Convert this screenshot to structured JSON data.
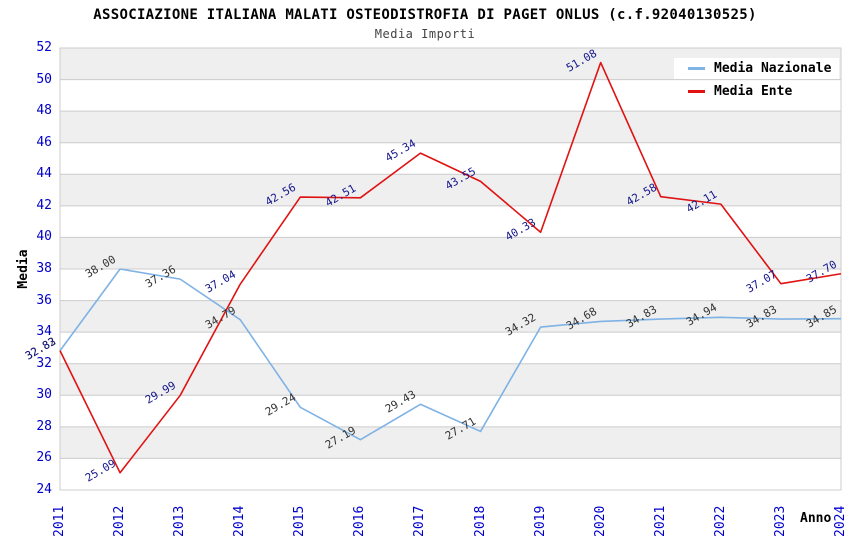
{
  "header": {
    "title": "ASSOCIAZIONE ITALIANA MALATI OSTEODISTROFIA DI PAGET ONLUS (c.f.92040130525)",
    "subtitle": "Media Importi"
  },
  "chart_data": {
    "type": "line",
    "title": "ASSOCIAZIONE ITALIANA MALATI OSTEODISTROFIA DI PAGET ONLUS (c.f.92040130525)",
    "subtitle": "Media Importi",
    "xlabel": "Anno",
    "ylabel": "Media",
    "categories": [
      "2011",
      "2012",
      "2013",
      "2014",
      "2015",
      "2016",
      "2017",
      "2018",
      "2019",
      "2020",
      "2021",
      "2022",
      "2023",
      "2024"
    ],
    "series": [
      {
        "name": "Media Nazionale",
        "color": "#7FB2E5",
        "label_color": "#333333",
        "values": [
          32.82,
          38.0,
          37.36,
          34.79,
          29.24,
          27.19,
          29.43,
          27.71,
          34.32,
          34.68,
          34.83,
          34.94,
          34.83,
          34.85
        ]
      },
      {
        "name": "Media Ente",
        "color": "#E01212",
        "label_color": "#16168C",
        "values": [
          32.83,
          25.09,
          29.99,
          37.04,
          42.56,
          42.51,
          45.34,
          43.55,
          40.33,
          51.08,
          42.58,
          42.11,
          37.07,
          37.7
        ]
      }
    ],
    "ylim": [
      24,
      52
    ],
    "ytick_step": 2,
    "yticks": [
      24,
      26,
      28,
      30,
      32,
      34,
      36,
      38,
      40,
      42,
      44,
      46,
      48,
      50,
      52
    ],
    "grid": true,
    "legend_position": "top-right",
    "band_colors": [
      "#EFEFEF",
      "#FFFFFF"
    ],
    "gridline_color": "#CCCCCC",
    "border_color": "#CCCCCC",
    "axis_tick_color": "#0000CC"
  }
}
